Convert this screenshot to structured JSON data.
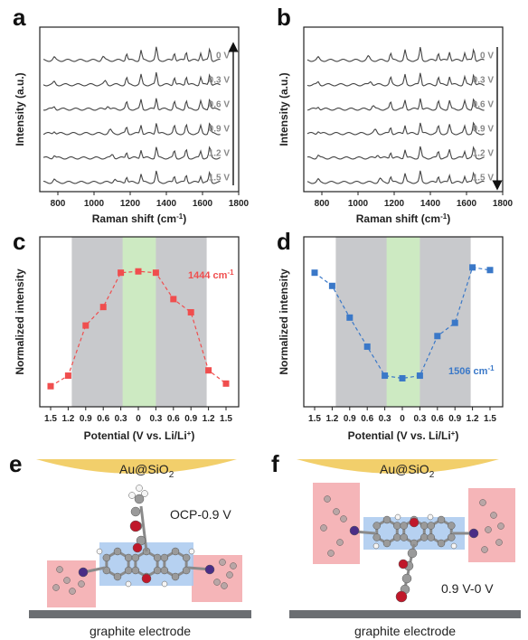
{
  "panels": {
    "a": "a",
    "b": "b",
    "c": "c",
    "d": "d",
    "e": "e",
    "f": "f"
  },
  "raman": {
    "xlabel_main": "Raman shift (cm",
    "xlabel_sup": "-1",
    "xlabel_end": ")",
    "ylabel": "Intensity (a.u.)",
    "xticks": [
      "800",
      "1000",
      "1200",
      "1400",
      "1600",
      "1800"
    ],
    "a_labels": [
      "0 V",
      "0.3 V",
      "0.6 V",
      "0.9 V",
      "1.2 V",
      "1.5 V"
    ],
    "b_labels": [
      "0 V",
      "0.3 V",
      "0.6 V",
      "0.9 V",
      "1.2 V",
      "1.5 V"
    ]
  },
  "norm": {
    "xlabel_main": "Potential (V vs. Li/Li",
    "xlabel_sup": "+",
    "xlabel_end": ")",
    "ylabel": "Normalized intensity",
    "c_ann_main": "1444 cm",
    "c_ann_sup": "-1",
    "d_ann_main": "1506 cm",
    "d_ann_sup": "-1"
  },
  "schemes": {
    "top_label_main": "Au@SiO",
    "top_label_sub": "2",
    "e_label": "OCP-0.9 V",
    "f_label": "0.9 V-0 V",
    "electrode": "graphite electrode"
  },
  "colors": {
    "red": "#f04e4e",
    "blue": "#3a78c8",
    "gray_band": "#c8c9cc",
    "green_band": "#cdeac2",
    "au": "#f2cf6b",
    "pink": "#f3a8ac",
    "lightblue": "#a9c9ee"
  },
  "chart_data": [
    {
      "type": "line",
      "panel": "a",
      "xlabel": "Raman shift (cm-1)",
      "ylabel": "Intensity (a.u.)",
      "xlim": [
        700,
        1800
      ],
      "series": [
        {
          "name": "0 V"
        },
        {
          "name": "0.3 V"
        },
        {
          "name": "0.6 V"
        },
        {
          "name": "0.9 V"
        },
        {
          "name": "1.2 V"
        },
        {
          "name": "1.5 V"
        }
      ],
      "peaks": [
        1180,
        1260,
        1345,
        1444,
        1510,
        1590,
        1640
      ],
      "arrow": "up"
    },
    {
      "type": "line",
      "panel": "b",
      "xlabel": "Raman shift (cm-1)",
      "ylabel": "Intensity (a.u.)",
      "xlim": [
        700,
        1800
      ],
      "series": [
        {
          "name": "0 V"
        },
        {
          "name": "0.3 V"
        },
        {
          "name": "0.6 V"
        },
        {
          "name": "0.9 V"
        },
        {
          "name": "1.2 V"
        },
        {
          "name": "1.5 V"
        }
      ],
      "peaks": [
        1180,
        1260,
        1345,
        1444,
        1506,
        1590,
        1640
      ],
      "arrow": "down"
    },
    {
      "type": "scatter",
      "panel": "c",
      "series_label": "1444 cm-1",
      "xlabel": "Potential (V vs. Li/Li+)",
      "ylabel": "Normalized intensity",
      "x": [
        "1.5",
        "1.2",
        "0.9",
        "0.6",
        "0.3",
        "0",
        "0.3",
        "0.6",
        "0.9",
        "1.2",
        "1.5"
      ],
      "values": [
        0.06,
        0.14,
        0.52,
        0.66,
        0.92,
        0.93,
        0.92,
        0.72,
        0.62,
        0.18,
        0.08
      ],
      "ylim": [
        0,
        1
      ],
      "bands": {
        "gray": [
          "1.2",
          "1.2"
        ],
        "green": [
          "0.3",
          "0.3"
        ]
      }
    },
    {
      "type": "scatter",
      "panel": "d",
      "series_label": "1506 cm-1",
      "xlabel": "Potential (V vs. Li/Li+)",
      "ylabel": "Normalized intensity",
      "x": [
        "1.5",
        "1.2",
        "0.9",
        "0.6",
        "0.3",
        "0",
        "0.3",
        "0.6",
        "0.9",
        "1.2",
        "1.5"
      ],
      "values": [
        0.92,
        0.82,
        0.58,
        0.36,
        0.14,
        0.12,
        0.14,
        0.44,
        0.54,
        0.96,
        0.94
      ],
      "ylim": [
        0,
        1
      ],
      "bands": {
        "gray": [
          "1.2",
          "1.2"
        ],
        "green": [
          "0.3",
          "0.3"
        ]
      }
    }
  ]
}
